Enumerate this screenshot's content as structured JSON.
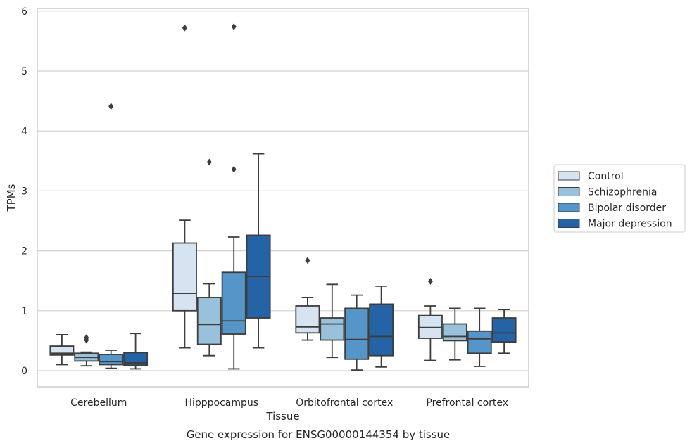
{
  "chart_data": {
    "type": "box",
    "title": "",
    "xlabel": "Tissue",
    "ylabel": "TPMs",
    "caption": "Gene expression for ENSG00000144354 by tissue",
    "ylim": [
      -0.28,
      6.05
    ],
    "yticks": [
      0,
      1,
      2,
      3,
      4,
      5,
      6
    ],
    "grid": "horizontal",
    "legend_position": "right",
    "categories": [
      "Cerebellum",
      "Hipppocampus",
      "Orbitofrontal cortex",
      "Prefrontal cortex"
    ],
    "series": [
      {
        "name": "Control",
        "color": "#d6e4f2",
        "boxes": [
          {
            "whisker_low": 0.1,
            "q1": 0.26,
            "median": 0.29,
            "q3": 0.41,
            "whisker_high": 0.6,
            "outliers": []
          },
          {
            "whisker_low": 0.38,
            "q1": 1.0,
            "median": 1.29,
            "q3": 2.13,
            "whisker_high": 2.51,
            "outliers": [
              5.72
            ]
          },
          {
            "whisker_low": 0.51,
            "q1": 0.63,
            "median": 0.73,
            "q3": 1.08,
            "whisker_high": 1.22,
            "outliers": [
              1.84
            ]
          },
          {
            "whisker_low": 0.17,
            "q1": 0.54,
            "median": 0.72,
            "q3": 0.92,
            "whisker_high": 1.08,
            "outliers": [
              1.49
            ]
          }
        ]
      },
      {
        "name": "Schizophrenia",
        "color": "#9ac1db",
        "boxes": [
          {
            "whisker_low": 0.08,
            "q1": 0.16,
            "median": 0.22,
            "q3": 0.29,
            "whisker_high": 0.31,
            "outliers": [
              0.51,
              0.55
            ]
          },
          {
            "whisker_low": 0.25,
            "q1": 0.44,
            "median": 0.77,
            "q3": 1.22,
            "whisker_high": 1.45,
            "outliers": [
              3.48
            ]
          },
          {
            "whisker_low": 0.22,
            "q1": 0.51,
            "median": 0.78,
            "q3": 0.88,
            "whisker_high": 1.44,
            "outliers": []
          },
          {
            "whisker_low": 0.18,
            "q1": 0.5,
            "median": 0.57,
            "q3": 0.78,
            "whisker_high": 1.04,
            "outliers": []
          }
        ]
      },
      {
        "name": "Bipolar disorder",
        "color": "#5595c7",
        "boxes": [
          {
            "whisker_low": 0.04,
            "q1": 0.1,
            "median": 0.15,
            "q3": 0.27,
            "whisker_high": 0.34,
            "outliers": [
              4.41
            ]
          },
          {
            "whisker_low": 0.03,
            "q1": 0.61,
            "median": 0.83,
            "q3": 1.64,
            "whisker_high": 2.23,
            "outliers": [
              3.36,
              5.74
            ]
          },
          {
            "whisker_low": 0.01,
            "q1": 0.19,
            "median": 0.52,
            "q3": 1.04,
            "whisker_high": 1.26,
            "outliers": []
          },
          {
            "whisker_low": 0.07,
            "q1": 0.29,
            "median": 0.53,
            "q3": 0.66,
            "whisker_high": 1.04,
            "outliers": []
          }
        ]
      },
      {
        "name": "Major depression",
        "color": "#2363a6",
        "boxes": [
          {
            "whisker_low": 0.03,
            "q1": 0.09,
            "median": 0.13,
            "q3": 0.3,
            "whisker_high": 0.62,
            "outliers": []
          },
          {
            "whisker_low": 0.38,
            "q1": 0.88,
            "median": 1.57,
            "q3": 2.26,
            "whisker_high": 3.62,
            "outliers": []
          },
          {
            "whisker_low": 0.06,
            "q1": 0.25,
            "median": 0.57,
            "q3": 1.11,
            "whisker_high": 1.41,
            "outliers": []
          },
          {
            "whisker_low": 0.29,
            "q1": 0.48,
            "median": 0.63,
            "q3": 0.88,
            "whisker_high": 1.02,
            "outliers": []
          }
        ]
      }
    ]
  }
}
